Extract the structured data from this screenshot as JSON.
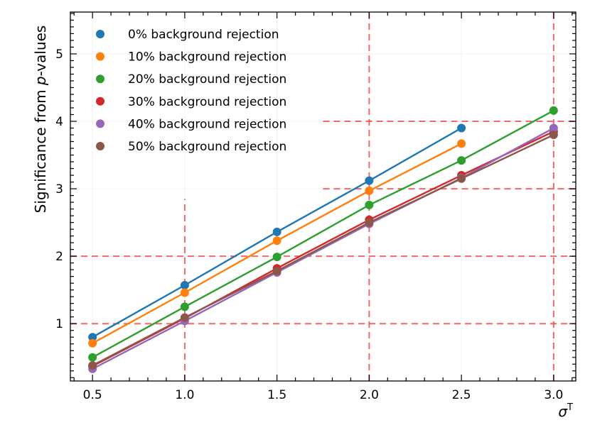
{
  "chart_data": {
    "type": "line",
    "title": "",
    "xlabel": "σ",
    "xlabel_superscript": "T",
    "ylabel_prefix": "Significance from ",
    "ylabel_italic": "p",
    "ylabel_suffix": "-values",
    "xlim": [
      0.38,
      3.12
    ],
    "ylim": [
      0.15,
      5.62
    ],
    "xticks": [
      0.5,
      1.0,
      1.5,
      2.0,
      2.5,
      3.0
    ],
    "xtick_labels": [
      "0.5",
      "1.0",
      "1.5",
      "2.0",
      "2.5",
      "3.0"
    ],
    "yticks": [
      1,
      2,
      3,
      4,
      5
    ],
    "ytick_labels": [
      "1",
      "2",
      "3",
      "4",
      "5"
    ],
    "grid": true,
    "legend_position": "top-left",
    "series": [
      {
        "name": "0% background rejection",
        "color": "#1f77b4",
        "x": [
          0.5,
          1.0,
          1.5,
          2.0,
          2.5
        ],
        "values": [
          0.8,
          1.57,
          2.36,
          3.12,
          3.9
        ]
      },
      {
        "name": "10% background rejection",
        "color": "#ff7f0e",
        "x": [
          0.5,
          1.0,
          1.5,
          2.0,
          2.5
        ],
        "values": [
          0.71,
          1.46,
          2.23,
          2.97,
          3.67
        ]
      },
      {
        "name": "20% background rejection",
        "color": "#2ca02c",
        "x": [
          0.5,
          1.0,
          1.5,
          2.0,
          2.5,
          3.0
        ],
        "values": [
          0.5,
          1.25,
          1.99,
          2.76,
          3.42,
          4.16
        ]
      },
      {
        "name": "30% background rejection",
        "color": "#d62728",
        "x": [
          0.5,
          1.0,
          1.5,
          2.0,
          2.5,
          3.0
        ],
        "values": [
          0.37,
          1.08,
          1.82,
          2.54,
          3.2,
          3.85
        ]
      },
      {
        "name": "40% background rejection",
        "color": "#9467bd",
        "x": [
          0.5,
          1.0,
          1.5,
          2.0,
          2.5,
          3.0
        ],
        "values": [
          0.33,
          1.04,
          1.76,
          2.48,
          3.16,
          3.9
        ]
      },
      {
        "name": "50% background rejection",
        "color": "#8c564b",
        "x": [
          0.5,
          1.0,
          1.5,
          2.0,
          2.5,
          3.0
        ],
        "values": [
          0.38,
          1.09,
          1.78,
          2.5,
          3.15,
          3.8
        ]
      }
    ],
    "reference_lines": {
      "color": "#f05050",
      "horizontal": [
        {
          "y": 1,
          "x_from": 0.38,
          "x_to": 3.12
        },
        {
          "y": 2,
          "x_from": 0.38,
          "x_to": 3.12
        },
        {
          "y": 3,
          "x_from": 1.75,
          "x_to": 3.12
        },
        {
          "y": 4,
          "x_from": 1.75,
          "x_to": 3.12
        }
      ],
      "vertical": [
        {
          "x": 1.0,
          "y_from": 0.15,
          "y_to": 2.85
        },
        {
          "x": 2.0,
          "y_from": 0.15,
          "y_to": 5.62
        },
        {
          "x": 3.0,
          "y_from": 0.15,
          "y_to": 5.62
        }
      ]
    }
  }
}
